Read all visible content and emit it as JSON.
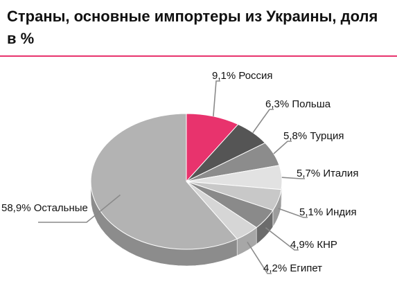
{
  "header": {
    "title": "Страны, основные импортеры из Украины, доля в %",
    "accent_color": "#e8336d"
  },
  "chart_data": {
    "type": "pie",
    "title": "Страны, основные импортеры из Украины, доля в %",
    "unit": "%",
    "start_angle_deg": 90,
    "direction": "clockwise",
    "three_d": true,
    "legend": "none",
    "categories": [
      "Россия",
      "Польша",
      "Турция",
      "Италия",
      "Индия",
      "КНР",
      "Египет",
      "Остальные"
    ],
    "values": [
      9.1,
      6.3,
      5.8,
      5.7,
      5.1,
      4.9,
      4.2,
      58.9
    ],
    "labels": [
      "9,1% Россия",
      "6,3% Польша",
      "5,8% Турция",
      "5,7% Италия",
      "5,1% Индия",
      "4,9% КНР",
      "4,2% Египет",
      "58,9% Остальные"
    ],
    "colors": [
      "#e8336d",
      "#555555",
      "#8c8c8c",
      "#e2e2e2",
      "#c8c8c8",
      "#8a8a8a",
      "#d6d6d6",
      "#b3b3b3"
    ]
  }
}
